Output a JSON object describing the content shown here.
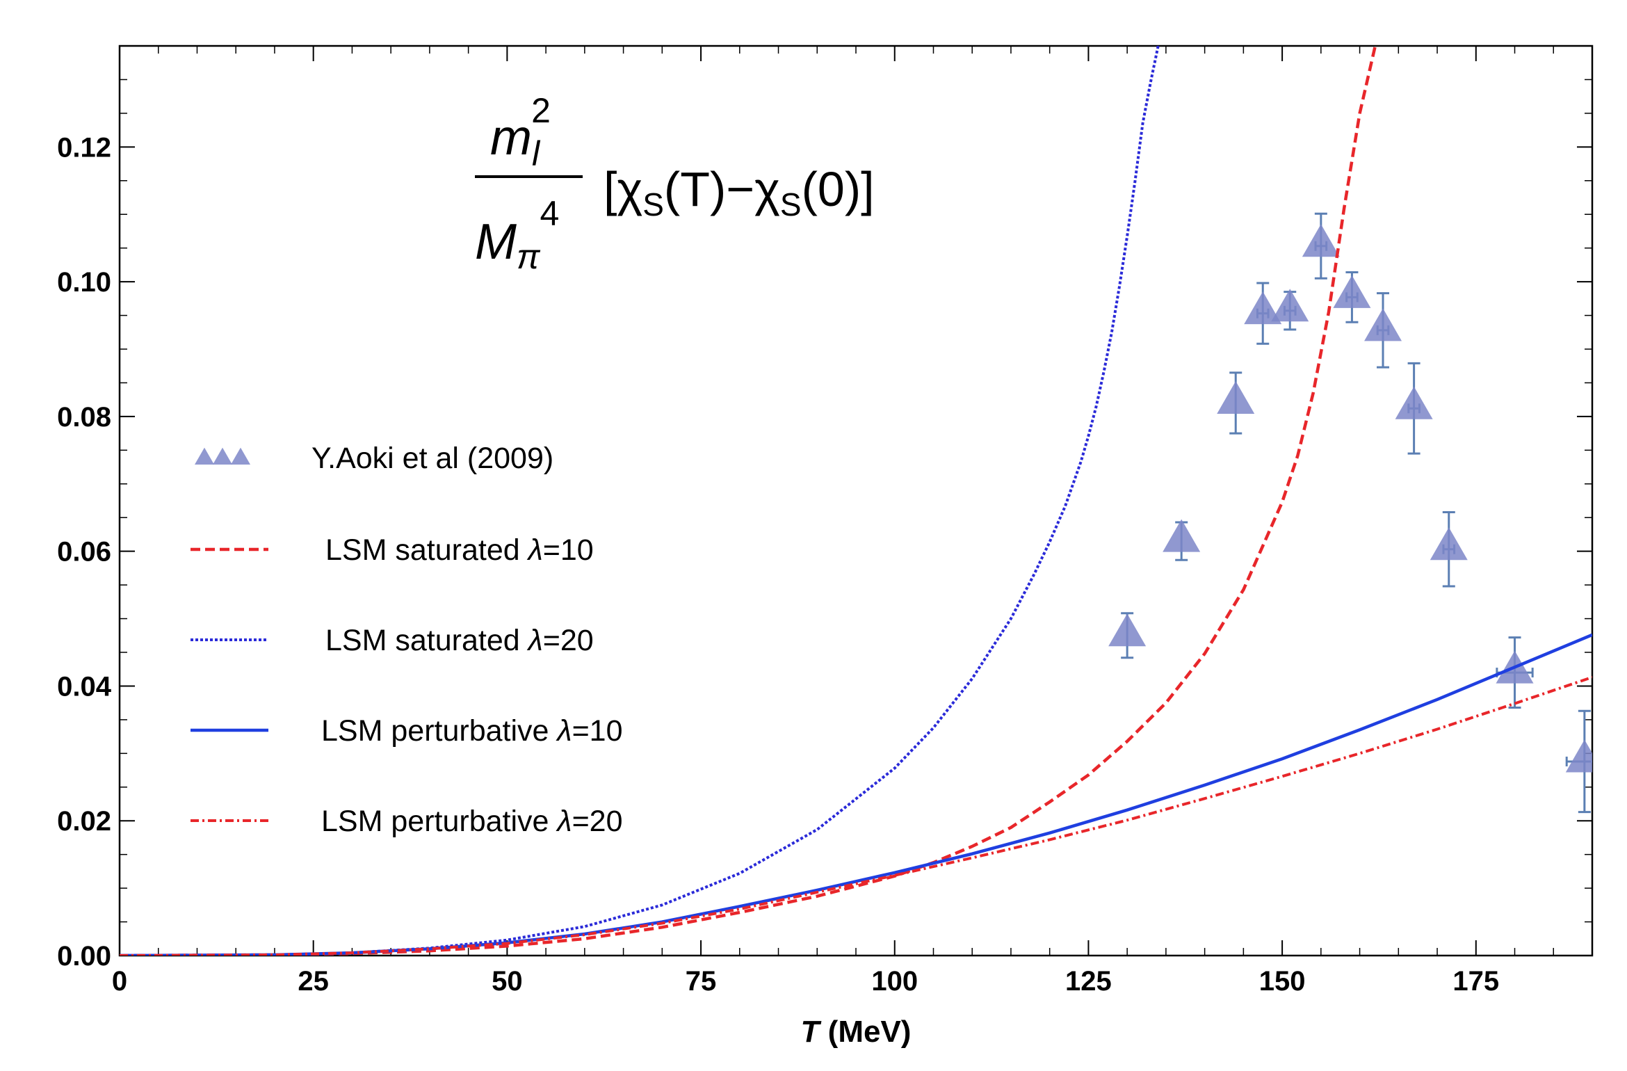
{
  "chart_data": {
    "type": "line",
    "title": "",
    "xlabel": "T (MeV)",
    "xlabel_italic": "T",
    "xlabel_unit": " (MeV)",
    "ylabel": "",
    "xlim": [
      0,
      190
    ],
    "ylim": [
      0,
      0.135
    ],
    "x_ticks": [
      0,
      25,
      50,
      75,
      100,
      125,
      150,
      175
    ],
    "x_tick_labels": [
      "0",
      "25",
      "50",
      "75",
      "100",
      "125",
      "150",
      "175"
    ],
    "y_ticks": [
      0,
      0.02,
      0.04,
      0.06,
      0.08,
      0.1,
      0.12
    ],
    "y_tick_labels": [
      "0.00",
      "0.02",
      "0.04",
      "0.06",
      "0.08",
      "0.10",
      "0.12"
    ],
    "grid": false,
    "legend_position": "left-middle",
    "annotation": {
      "numerator": "m",
      "numerator_sup": "2",
      "numerator_sub": "l",
      "denominator": "M",
      "denominator_sub": "π",
      "denominator_sup": "4",
      "bracket": "[χS(T)−χS(0)]",
      "bracket_parts": [
        "[χ",
        "S",
        "(T)−χ",
        "S",
        "(0)]"
      ]
    },
    "series": [
      {
        "name": "Y.Aoki et al (2009)",
        "kind": "scatter",
        "marker": "triangle",
        "color": "#7c86c8",
        "errorbar_color": "#5b7fb3",
        "points": [
          {
            "x": 130,
            "y": 0.0475,
            "yerr": 0.0033,
            "xerr": 0.0
          },
          {
            "x": 137,
            "y": 0.0615,
            "yerr": 0.0028,
            "xerr": 0.0
          },
          {
            "x": 144,
            "y": 0.082,
            "yerr": 0.0045,
            "xerr": 0.0
          },
          {
            "x": 147.5,
            "y": 0.0953,
            "yerr": 0.0045,
            "xerr": 0.7
          },
          {
            "x": 151,
            "y": 0.0957,
            "yerr": 0.0028,
            "xerr": 0.7
          },
          {
            "x": 155,
            "y": 0.1053,
            "yerr": 0.0048,
            "xerr": 0.7
          },
          {
            "x": 159,
            "y": 0.0977,
            "yerr": 0.0037,
            "xerr": 0.7
          },
          {
            "x": 163,
            "y": 0.0928,
            "yerr": 0.0055,
            "xerr": 0.7
          },
          {
            "x": 167,
            "y": 0.0812,
            "yerr": 0.0067,
            "xerr": 0.7
          },
          {
            "x": 171.5,
            "y": 0.0603,
            "yerr": 0.0055,
            "xerr": 0.7
          },
          {
            "x": 180,
            "y": 0.042,
            "yerr": 0.0052,
            "xerr": 2.3
          },
          {
            "x": 189,
            "y": 0.0288,
            "yerr": 0.0075,
            "xerr": 2.3
          }
        ]
      },
      {
        "name": "LSM saturated λ=10",
        "name_parts": [
          "LSM saturated ",
          "λ",
          "=10"
        ],
        "kind": "line",
        "style": "dashed",
        "color": "#e8262a",
        "x": [
          0,
          20,
          30,
          40,
          50,
          60,
          70,
          80,
          90,
          100,
          105,
          110,
          115,
          120,
          125,
          130,
          135,
          140,
          145,
          150,
          152,
          154,
          156,
          158,
          160,
          162
        ],
        "y": [
          0,
          0.0001,
          0.0003,
          0.0007,
          0.0014,
          0.0025,
          0.0042,
          0.0064,
          0.0088,
          0.0118,
          0.0138,
          0.0162,
          0.019,
          0.0228,
          0.0268,
          0.0318,
          0.0375,
          0.0448,
          0.0543,
          0.0673,
          0.0742,
          0.0835,
          0.0955,
          0.111,
          0.125,
          0.135
        ]
      },
      {
        "name": "LSM saturated λ=20",
        "name_parts": [
          "LSM saturated ",
          "λ",
          "=20"
        ],
        "kind": "line",
        "style": "dotted",
        "color": "#2a2ad8",
        "x": [
          0,
          20,
          30,
          40,
          50,
          60,
          70,
          80,
          90,
          100,
          105,
          110,
          115,
          118,
          120,
          122,
          124,
          125,
          126,
          127,
          128,
          129,
          130,
          131,
          132,
          133,
          134
        ],
        "y": [
          0,
          0.0001,
          0.0004,
          0.0011,
          0.0023,
          0.0043,
          0.0075,
          0.0122,
          0.0187,
          0.0278,
          0.0338,
          0.0411,
          0.05,
          0.0566,
          0.0614,
          0.0667,
          0.0732,
          0.0771,
          0.0815,
          0.0867,
          0.0925,
          0.0993,
          0.1068,
          0.1148,
          0.1235,
          0.1295,
          0.135
        ]
      },
      {
        "name": "LSM perturbative λ=10",
        "name_parts": [
          "LSM perturbative ",
          "λ",
          "=10"
        ],
        "kind": "line",
        "style": "solid",
        "color": "#1f3fe0",
        "x": [
          0,
          20,
          30,
          40,
          50,
          60,
          70,
          80,
          90,
          100,
          110,
          120,
          130,
          140,
          150,
          160,
          170,
          180,
          190
        ],
        "y": [
          0,
          0.0001,
          0.0004,
          0.001,
          0.0019,
          0.0032,
          0.005,
          0.0073,
          0.0097,
          0.0123,
          0.0151,
          0.0182,
          0.0216,
          0.0253,
          0.0292,
          0.0335,
          0.038,
          0.0428,
          0.0476
        ]
      },
      {
        "name": "LSM perturbative λ=20",
        "name_parts": [
          "LSM perturbative ",
          "λ",
          "=20"
        ],
        "kind": "line",
        "style": "dashdot",
        "color": "#e8262a",
        "x": [
          0,
          20,
          30,
          40,
          50,
          60,
          70,
          80,
          90,
          100,
          110,
          120,
          130,
          140,
          150,
          160,
          170,
          180,
          190
        ],
        "y": [
          0,
          0.0001,
          0.0004,
          0.001,
          0.0018,
          0.0031,
          0.0048,
          0.0069,
          0.0094,
          0.0119,
          0.0145,
          0.0172,
          0.0201,
          0.0233,
          0.0266,
          0.03,
          0.0336,
          0.0374,
          0.0413
        ]
      }
    ]
  }
}
